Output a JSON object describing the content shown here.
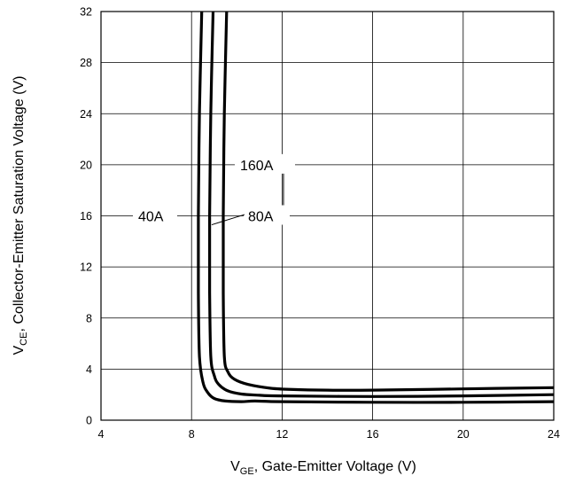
{
  "chart_data": {
    "type": "line",
    "title": "",
    "xlabel": {
      "main": "V",
      "sub": "GE",
      "rest": ", Gate-Emitter Voltage (V)"
    },
    "ylabel": {
      "main": "V",
      "sub": "CE",
      "rest": ", Collector-Emitter Saturation Voltage (V)"
    },
    "xlim": [
      4,
      24
    ],
    "ylim": [
      0,
      32
    ],
    "x_ticks": [
      "4",
      "8",
      "12",
      "16",
      "20",
      "24"
    ],
    "y_ticks": [
      "0",
      "4",
      "8",
      "12",
      "16",
      "20",
      "24",
      "28",
      "32"
    ],
    "grid": true,
    "series": [
      {
        "name": "40A",
        "x": [
          8.45,
          8.35,
          8.3,
          8.3,
          8.35,
          8.5,
          8.7,
          9.0,
          9.5,
          10.2,
          10.8,
          12,
          16,
          20,
          24
        ],
        "y": [
          32,
          24,
          16,
          10,
          5,
          3,
          2.2,
          1.7,
          1.5,
          1.45,
          1.5,
          1.45,
          1.4,
          1.4,
          1.45
        ]
      },
      {
        "name": "80A",
        "x": [
          8.95,
          8.85,
          8.8,
          8.8,
          8.85,
          9.0,
          9.2,
          9.6,
          10.2,
          11,
          12,
          16,
          20,
          24
        ],
        "y": [
          32,
          24,
          16,
          10,
          5,
          3.5,
          2.8,
          2.3,
          2.05,
          1.95,
          1.9,
          1.85,
          1.9,
          2.0
        ]
      },
      {
        "name": "160A",
        "x": [
          9.55,
          9.45,
          9.4,
          9.4,
          9.45,
          9.6,
          9.9,
          10.5,
          11.5,
          12.5,
          14,
          16,
          20,
          24
        ],
        "y": [
          32,
          24,
          16,
          10,
          5,
          3.8,
          3.2,
          2.8,
          2.5,
          2.4,
          2.35,
          2.35,
          2.45,
          2.55
        ]
      }
    ],
    "annotations": [
      {
        "text": "160A",
        "series": "160A"
      },
      {
        "text": "40A",
        "series": "40A"
      },
      {
        "text": "80A",
        "series": "80A"
      }
    ]
  }
}
